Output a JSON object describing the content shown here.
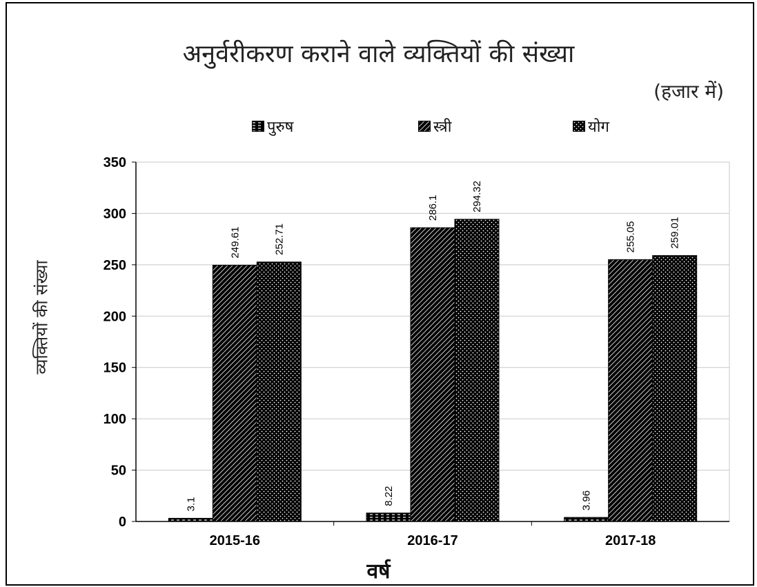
{
  "chart_data": {
    "type": "bar",
    "title": "अनुर्वरीकरण कराने वाले व्यक्तियों की संख्या",
    "subtitle": "(हजार में)",
    "xlabel": "वर्ष",
    "ylabel": "व्यक्तियों की संख्या",
    "categories": [
      "2015-16",
      "2016-17",
      "2017-18"
    ],
    "series": [
      {
        "name": "पुरुष",
        "values": [
          3.1,
          8.22,
          3.96
        ],
        "pattern": "dashes"
      },
      {
        "name": "स्त्री",
        "values": [
          249.61,
          286.1,
          255.05
        ],
        "pattern": "diagonal"
      },
      {
        "name": "योग",
        "values": [
          252.71,
          294.32,
          259.01
        ],
        "pattern": "dots"
      }
    ],
    "ylim": [
      0,
      350
    ],
    "yticks": [
      0,
      50,
      100,
      150,
      200,
      250,
      300,
      350
    ],
    "grid": true,
    "legend_position": "top",
    "colors": {
      "bar_fill": "#000000",
      "bar_pattern": "#ffffff",
      "grid": "#c8c8c8",
      "axis": "#000000"
    }
  }
}
